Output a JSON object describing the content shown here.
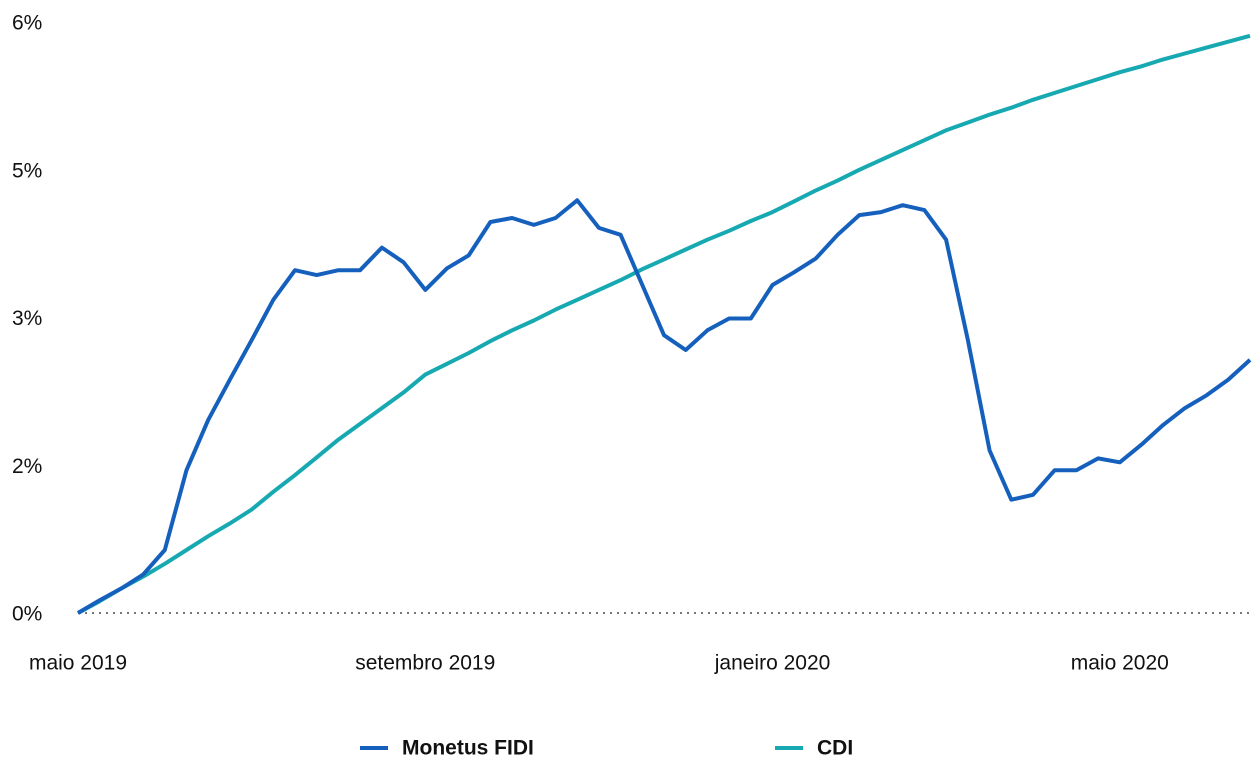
{
  "chart_data": {
    "type": "line",
    "categories": [
      "maio 2019",
      null,
      null,
      null,
      null,
      null,
      null,
      null,
      null,
      null,
      null,
      null,
      null,
      null,
      null,
      null,
      "setembro 2019",
      null,
      null,
      null,
      null,
      null,
      null,
      null,
      null,
      null,
      null,
      null,
      null,
      null,
      null,
      null,
      "janeiro 2020",
      null,
      null,
      null,
      null,
      null,
      null,
      null,
      null,
      null,
      null,
      null,
      null,
      null,
      null,
      null,
      "maio 2020",
      null,
      null,
      null,
      null,
      null,
      null
    ],
    "series": [
      {
        "name": "Monetus FIDI",
        "color": "#1560bd",
        "values": [
          0,
          0.13,
          0.25,
          0.39,
          0.64,
          1.45,
          1.96,
          2.37,
          2.77,
          3.18,
          3.48,
          3.43,
          3.48,
          3.48,
          3.71,
          3.56,
          3.28,
          3.5,
          3.63,
          3.97,
          4.01,
          3.94,
          4.01,
          4.19,
          3.91,
          3.84,
          3.33,
          2.82,
          2.67,
          2.87,
          2.99,
          2.99,
          3.33,
          3.46,
          3.6,
          3.84,
          4.04,
          4.07,
          4.14,
          4.09,
          3.79,
          2.77,
          1.65,
          1.15,
          1.2,
          1.45,
          1.45,
          1.57,
          1.53,
          1.71,
          1.91,
          2.08,
          2.21,
          2.37,
          2.57
        ]
      },
      {
        "name": "CDI",
        "color": "#17a9b1",
        "values": [
          0,
          0.12,
          0.25,
          0.37,
          0.5,
          0.64,
          0.78,
          0.91,
          1.05,
          1.23,
          1.4,
          1.58,
          1.76,
          1.92,
          2.08,
          2.24,
          2.42,
          2.53,
          2.64,
          2.76,
          2.87,
          2.97,
          3.08,
          3.18,
          3.28,
          3.38,
          3.49,
          3.59,
          3.69,
          3.79,
          3.88,
          3.98,
          4.07,
          4.18,
          4.29,
          4.39,
          4.5,
          4.6,
          4.7,
          4.8,
          4.9,
          4.98,
          5.06,
          5.13,
          5.21,
          5.28,
          5.35,
          5.42,
          5.49,
          5.55,
          5.62,
          5.68,
          5.74,
          5.8,
          5.86
        ]
      }
    ],
    "ylim": [
      0,
      6
    ],
    "yticks": [
      {
        "value": 0,
        "label": "0%"
      },
      {
        "value": 1.5,
        "label": "2%"
      },
      {
        "value": 3,
        "label": "3%"
      },
      {
        "value": 4.5,
        "label": "5%"
      },
      {
        "value": 6,
        "label": "6%"
      }
    ]
  }
}
